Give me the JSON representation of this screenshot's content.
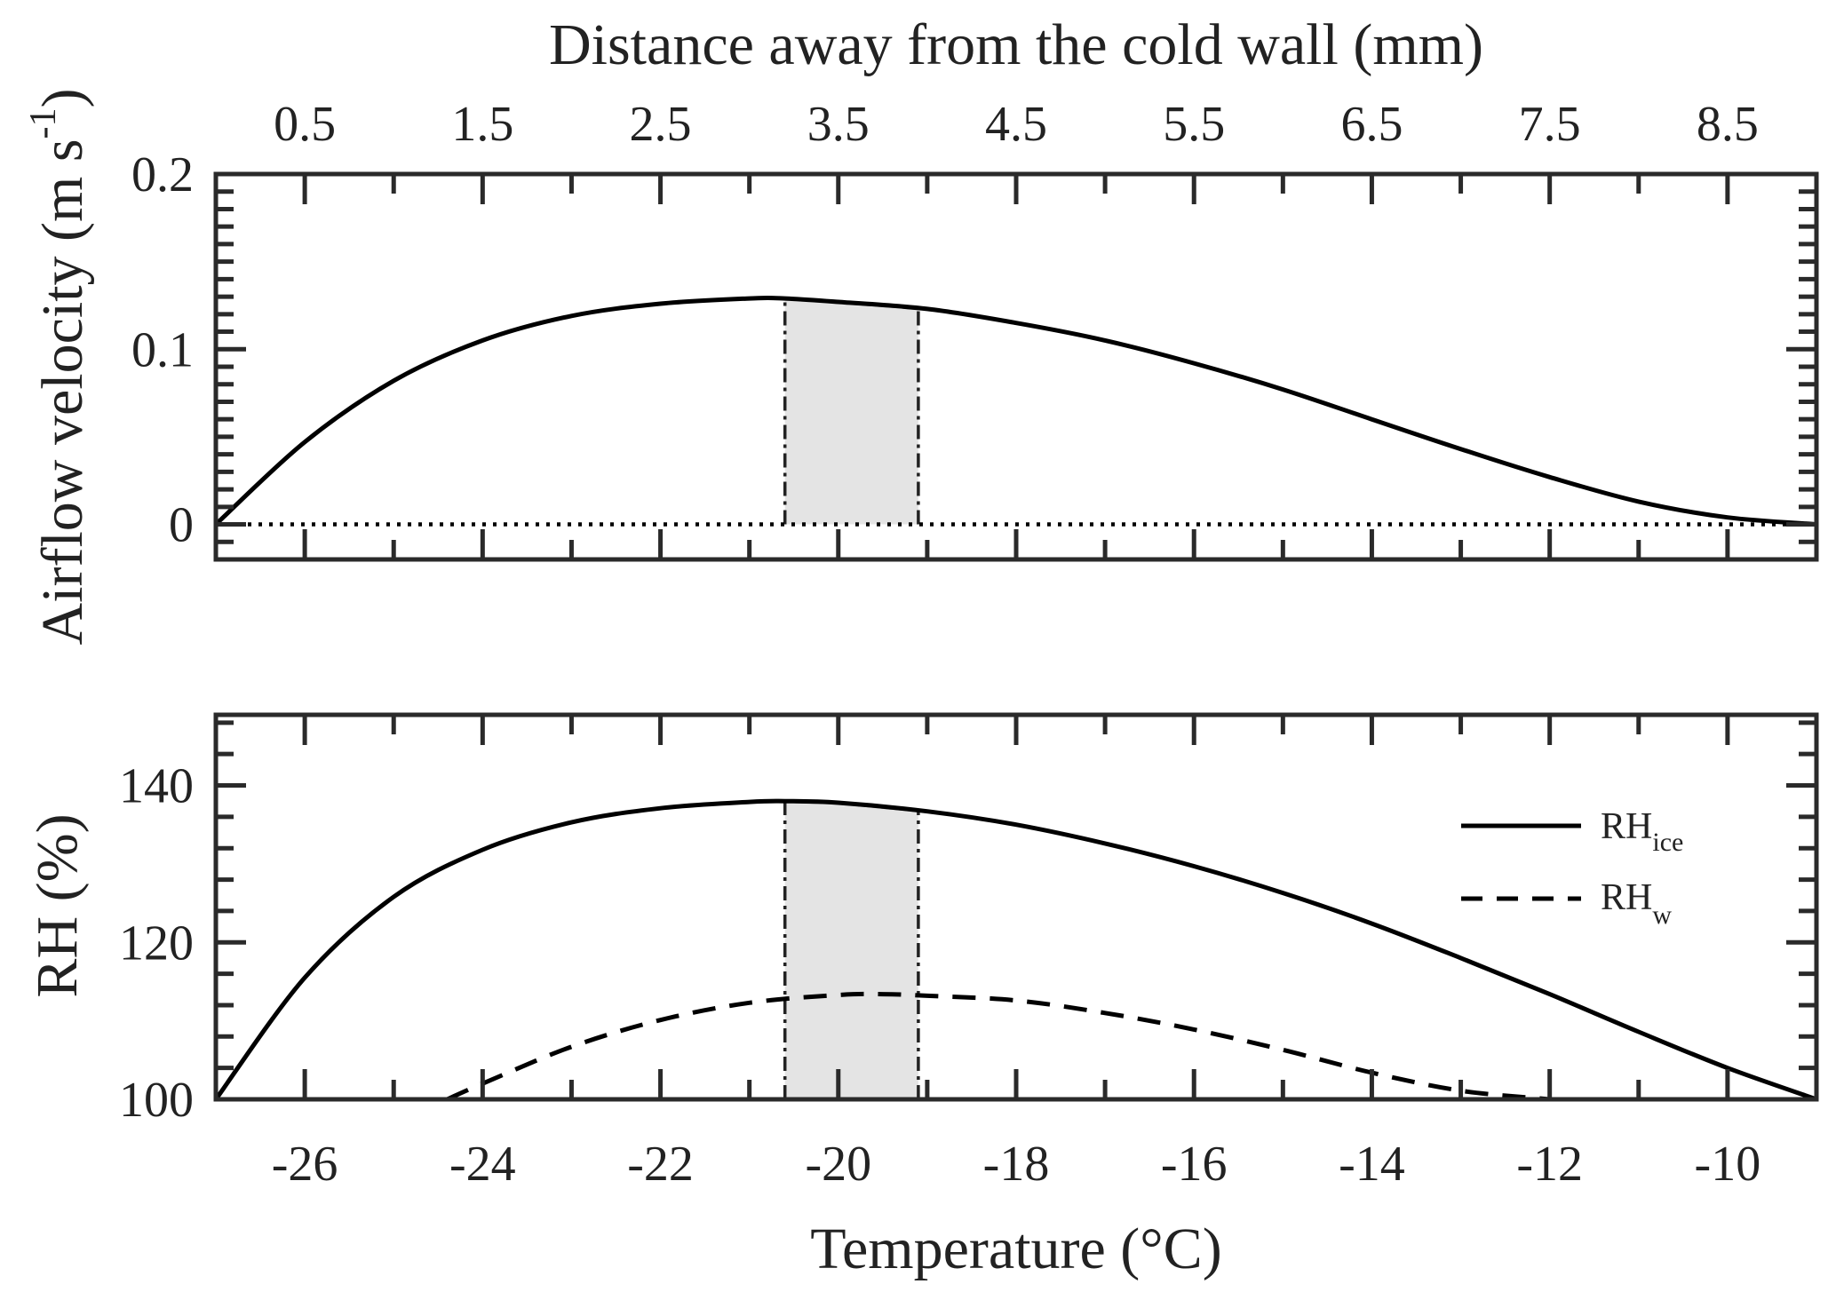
{
  "chart_data": [
    {
      "type": "line",
      "panel": "top",
      "ylabel": "Airflow velocity (m s",
      "ylabel_sup": "-1",
      "ylabel_close": ")",
      "top_xlabel": "Distance away from the cold wall (mm)",
      "top_xticks": [
        "0.5",
        "1.5",
        "2.5",
        "3.5",
        "4.5",
        "5.5",
        "6.5",
        "7.5",
        "8.5"
      ],
      "top_xtick_values": [
        0.5,
        1.5,
        2.5,
        3.5,
        4.5,
        5.5,
        6.5,
        7.5,
        8.5
      ],
      "top_xlim": [
        0,
        9
      ],
      "xlim": [
        -27,
        -9
      ],
      "ylim": [
        -0.02,
        0.2
      ],
      "yticks": [
        "0",
        "0.1",
        "0.2"
      ],
      "ytick_values": [
        0,
        0.1,
        0.2
      ],
      "shaded_region": {
        "x": [
          -20.6,
          -19.1
        ]
      },
      "reference_line": {
        "y": 0,
        "style": "dotted"
      },
      "series": [
        {
          "style": "solid",
          "x": [
            -27,
            -26,
            -25,
            -24,
            -23,
            -22,
            -21,
            -20.6,
            -20,
            -19,
            -18,
            -17,
            -16,
            -15,
            -14,
            -13,
            -12,
            -11,
            -10,
            -9
          ],
          "values": [
            0,
            0.047,
            0.082,
            0.105,
            0.119,
            0.126,
            0.129,
            0.129,
            0.127,
            0.123,
            0.115,
            0.105,
            0.092,
            0.077,
            0.06,
            0.043,
            0.027,
            0.013,
            0.004,
            0
          ]
        }
      ]
    },
    {
      "type": "line",
      "panel": "bottom",
      "xlabel": "Temperature (°C)",
      "ylabel": "RH (%)",
      "xlim": [
        -27,
        -9
      ],
      "ylim": [
        100,
        149
      ],
      "xticks": [
        "-26",
        "-24",
        "-22",
        "-20",
        "-18",
        "-16",
        "-14",
        "-12",
        "-10"
      ],
      "xtick_values": [
        -26,
        -24,
        -22,
        -20,
        -18,
        -16,
        -14,
        -12,
        -10
      ],
      "yticks": [
        "100",
        "120",
        "140"
      ],
      "ytick_values": [
        100,
        120,
        140
      ],
      "shaded_region": {
        "x": [
          -20.6,
          -19.1
        ]
      },
      "legend": {
        "placement": "right"
      },
      "series": [
        {
          "name": "RH",
          "name_sub": "ice",
          "style": "solid",
          "x": [
            -27,
            -26,
            -25,
            -24,
            -23,
            -22,
            -21,
            -20.6,
            -20,
            -19,
            -18,
            -17,
            -16,
            -15,
            -14,
            -13,
            -12,
            -11,
            -10,
            -9
          ],
          "values": [
            100,
            115.5,
            125.8,
            131.8,
            135.3,
            137.1,
            137.9,
            138.0,
            137.8,
            136.7,
            135.0,
            132.6,
            129.7,
            126.3,
            122.4,
            118.0,
            113.4,
            108.6,
            104.0,
            100
          ]
        },
        {
          "name": "RH",
          "name_sub": "w",
          "style": "dashed",
          "x": [
            -24.4,
            -24,
            -23,
            -22,
            -21,
            -20,
            -19.5,
            -19,
            -18,
            -17,
            -16,
            -15,
            -14,
            -13,
            -12
          ],
          "values": [
            100,
            102.0,
            106.7,
            110.1,
            112.3,
            113.3,
            113.4,
            113.2,
            112.6,
            111.0,
            108.9,
            106.3,
            103.4,
            101.1,
            100
          ]
        }
      ]
    }
  ]
}
